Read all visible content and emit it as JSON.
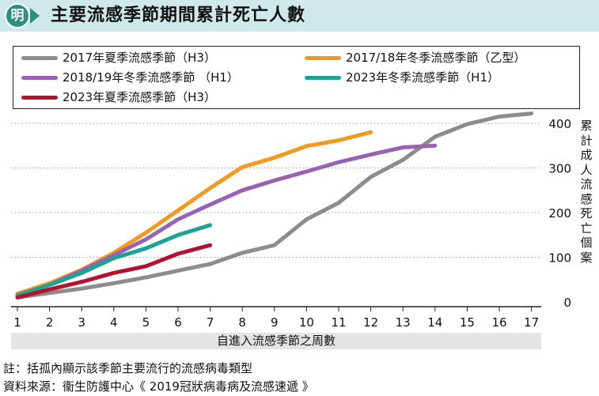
{
  "header": {
    "badge": "明",
    "title": "主要流感季節期間累計死亡人數"
  },
  "chart_data": {
    "type": "line",
    "title": "主要流感季節期間累計死亡人數",
    "xlabel": "自進入流感季節之周數",
    "ylabel": "累計成人流感死亡個案",
    "x_ticks": [
      "1",
      "2",
      "3",
      "4",
      "5",
      "6",
      "7",
      "8",
      "9",
      "10",
      "11",
      "12",
      "13",
      "14",
      "15",
      "16",
      "17"
    ],
    "y_ticks": [
      "0",
      "100",
      "200",
      "300",
      "400"
    ],
    "xlim": [
      1,
      17
    ],
    "ylim": [
      0,
      420
    ],
    "grid": "horizontal dotted",
    "legend_position": "top",
    "series": [
      {
        "name": "2017年夏季流感季節（H3）",
        "color": "#8c8c8c",
        "x": [
          1,
          2,
          3,
          4,
          5,
          6,
          7,
          8,
          9,
          10,
          11,
          12,
          13,
          14,
          15,
          16,
          17
        ],
        "values": [
          10,
          20,
          30,
          42,
          55,
          70,
          85,
          110,
          127,
          185,
          222,
          280,
          318,
          370,
          398,
          415,
          422
        ]
      },
      {
        "name": "2017/18年冬季流感季節（乙型）",
        "color": "#f29a1f",
        "x": [
          1,
          2,
          3,
          4,
          5,
          6,
          7,
          8,
          9,
          10,
          11,
          12
        ],
        "values": [
          18,
          42,
          72,
          110,
          155,
          205,
          255,
          302,
          323,
          349,
          362,
          380
        ]
      },
      {
        "name": "2018/19年冬季流感季節 （H1）",
        "color": "#9a62b2",
        "x": [
          1,
          2,
          3,
          4,
          5,
          6,
          7,
          8,
          9,
          10,
          11,
          12,
          13,
          14
        ],
        "values": [
          15,
          38,
          70,
          105,
          140,
          185,
          218,
          250,
          272,
          292,
          313,
          330,
          346,
          350
        ]
      },
      {
        "name": "2023年冬季流感季節（H1）",
        "color": "#1ba395",
        "x": [
          1,
          2,
          3,
          4,
          5,
          6,
          7
        ],
        "values": [
          14,
          38,
          65,
          98,
          120,
          150,
          172
        ]
      },
      {
        "name": "2023年夏季流感季節（H3）",
        "color": "#b5122e",
        "x": [
          1,
          2,
          3,
          4,
          5,
          6,
          7
        ],
        "values": [
          10,
          28,
          45,
          65,
          80,
          108,
          127
        ]
      }
    ]
  },
  "footer": {
    "note": "註：括孤內顯示該季節主要流行的流感病毒類型",
    "source": "資料來源：衞生防護中心《 2019冠狀病毒病及流感速遞 》"
  }
}
